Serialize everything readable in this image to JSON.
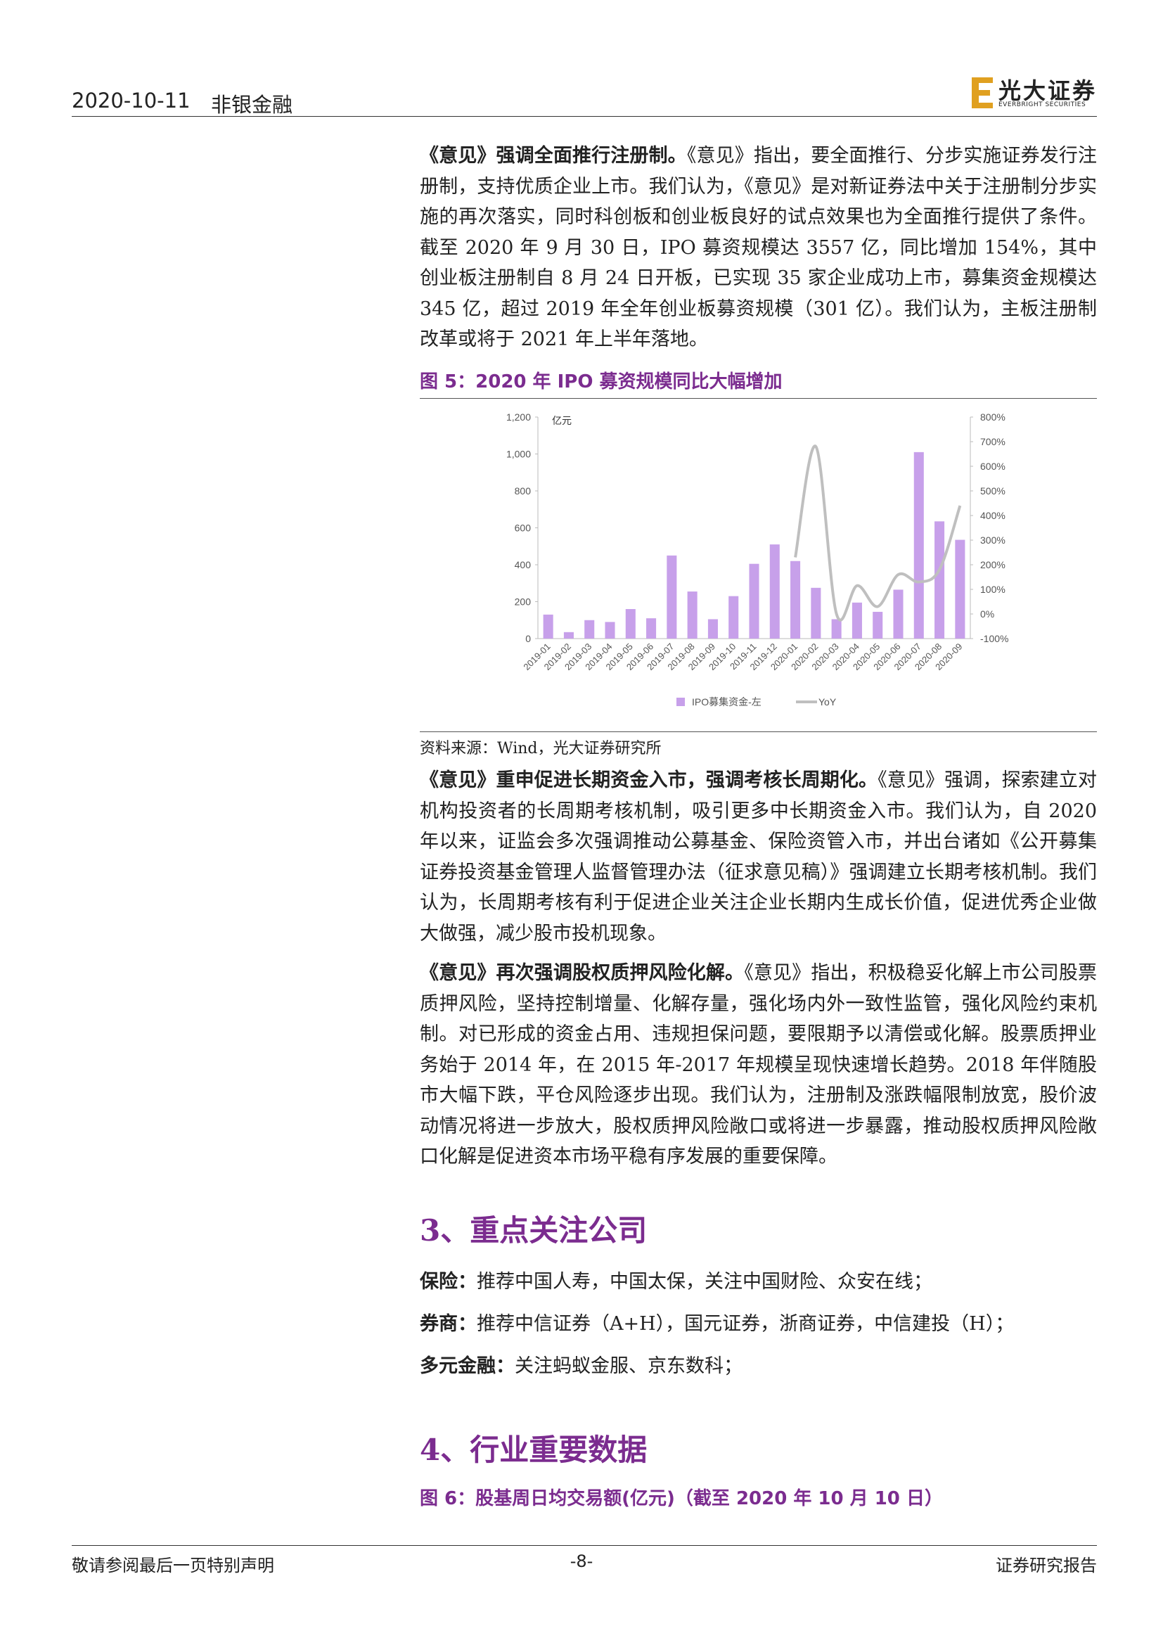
{
  "header": {
    "date": "2020-10-11",
    "category": "非银金融",
    "logo_cn": "光大证券",
    "logo_en": "EVERBRIGHT SECURITIES"
  },
  "paragraphs_1": [
    {
      "lead": "《意见》强调全面推行注册制。",
      "text": "《意见》指出，要全面推行、分步实施证券发行注册制，支持优质企业上市。我们认为，《意见》是对新证券法中关于注册制分步实施的再次落实，同时科创板和创业板良好的试点效果也为全面推行提供了条件。截至 2020 年 9 月 30 日，IPO 募资规模达 3557 亿，同比增加 154%，其中创业板注册制自 8 月 24 日开板，已实现 35 家企业成功上市，募集资金规模达 345 亿，超过 2019 年全年创业板募资规模（301 亿）。我们认为，主板注册制改革或将于 2021 年上半年落地。"
    }
  ],
  "figure_5": {
    "caption": "图 5：2020 年 IPO 募资规模同比大幅增加",
    "source": "资料来源：Wind，光大证券研究所"
  },
  "chart_data": {
    "type": "bar-line",
    "y_unit": "亿元",
    "categories": [
      "2019-01",
      "2019-02",
      "2019-03",
      "2019-04",
      "2019-05",
      "2019-06",
      "2019-07",
      "2019-08",
      "2019-09",
      "2019-10",
      "2019-11",
      "2019-12",
      "2020-01",
      "2020-02",
      "2020-03",
      "2020-04",
      "2020-05",
      "2020-06",
      "2020-07",
      "2020-08",
      "2020-09"
    ],
    "series": [
      {
        "name": "IPO募集资金-左",
        "type": "bar",
        "color": "#c7a0ea",
        "values": [
          130,
          35,
          100,
          90,
          160,
          110,
          450,
          255,
          105,
          230,
          405,
          510,
          420,
          275,
          105,
          195,
          145,
          265,
          1010,
          635,
          535
        ]
      },
      {
        "name": "YoY",
        "type": "line",
        "axis": "y2",
        "color": "#bfbfbf",
        "values": [
          null,
          null,
          null,
          null,
          null,
          null,
          null,
          null,
          null,
          null,
          null,
          null,
          230,
          680,
          0,
          115,
          30,
          160,
          130,
          180,
          440
        ]
      }
    ],
    "ylim": [
      0,
      1200
    ],
    "yticks": [
      0,
      200,
      400,
      600,
      800,
      {
        "value": 1000,
        "label": "1,000"
      },
      {
        "value": 1200,
        "label": "1,200"
      }
    ],
    "y2lim": [
      -100,
      800
    ],
    "y2ticks": [
      {
        "value": -100,
        "label": "-100%"
      },
      {
        "value": 0,
        "label": "0%"
      },
      {
        "value": 100,
        "label": "100%"
      },
      {
        "value": 200,
        "label": "200%"
      },
      {
        "value": 300,
        "label": "300%"
      },
      {
        "value": 400,
        "label": "400%"
      },
      {
        "value": 500,
        "label": "500%"
      },
      {
        "value": 600,
        "label": "600%"
      },
      {
        "value": 700,
        "label": "700%"
      },
      {
        "value": 800,
        "label": "800%"
      }
    ],
    "grid": false,
    "legend": "bottom"
  },
  "paragraphs_2": [
    {
      "lead": "《意见》重申促进长期资金入市，强调考核长周期化。",
      "text": "《意见》强调，探索建立对机构投资者的长周期考核机制，吸引更多中长期资金入市。我们认为，自 2020 年以来，证监会多次强调推动公募基金、保险资管入市，并出台诸如《公开募集证券投资基金管理人监督管理办法（征求意见稿）》强调建立长期考核机制。我们认为，长周期考核有利于促进企业关注企业长期内生成长价值，促进优秀企业做大做强，减少股市投机现象。"
    },
    {
      "lead": "《意见》再次强调股权质押风险化解。",
      "text": "《意见》指出，积极稳妥化解上市公司股票质押风险，坚持控制增量、化解存量，强化场内外一致性监管，强化风险约束机制。对已形成的资金占用、违规担保问题，要限期予以清偿或化解。股票质押业务始于 2014 年，在 2015 年-2017 年规模呈现快速增长趋势。2018 年伴随股市大幅下跌，平仓风险逐步出现。我们认为，注册制及涨跌幅限制放宽，股价波动情况将进一步放大，股权质押风险敞口或将进一步暴露，推动股权质押风险敞口化解是促进资本市场平稳有序发展的重要保障。"
    }
  ],
  "section_3": {
    "title": "3、重点关注公司",
    "items": [
      {
        "label": "保险：",
        "text": "推荐中国人寿，中国太保，关注中国财险、众安在线；"
      },
      {
        "label": "券商：",
        "text": "推荐中信证券（A+H），国元证券，浙商证券，中信建投（H）；"
      },
      {
        "label": "多元金融：",
        "text": "关注蚂蚁金服、京东数科；"
      }
    ]
  },
  "section_4": {
    "title": "4、行业重要数据"
  },
  "figure_6": {
    "caption": "图 6：股基周日均交易额(亿元)（截至 2020 年 10 月 10 日）"
  },
  "footer": {
    "left": "敬请参阅最后一页特别声明",
    "page": "-8-",
    "right": "证券研究报告"
  }
}
